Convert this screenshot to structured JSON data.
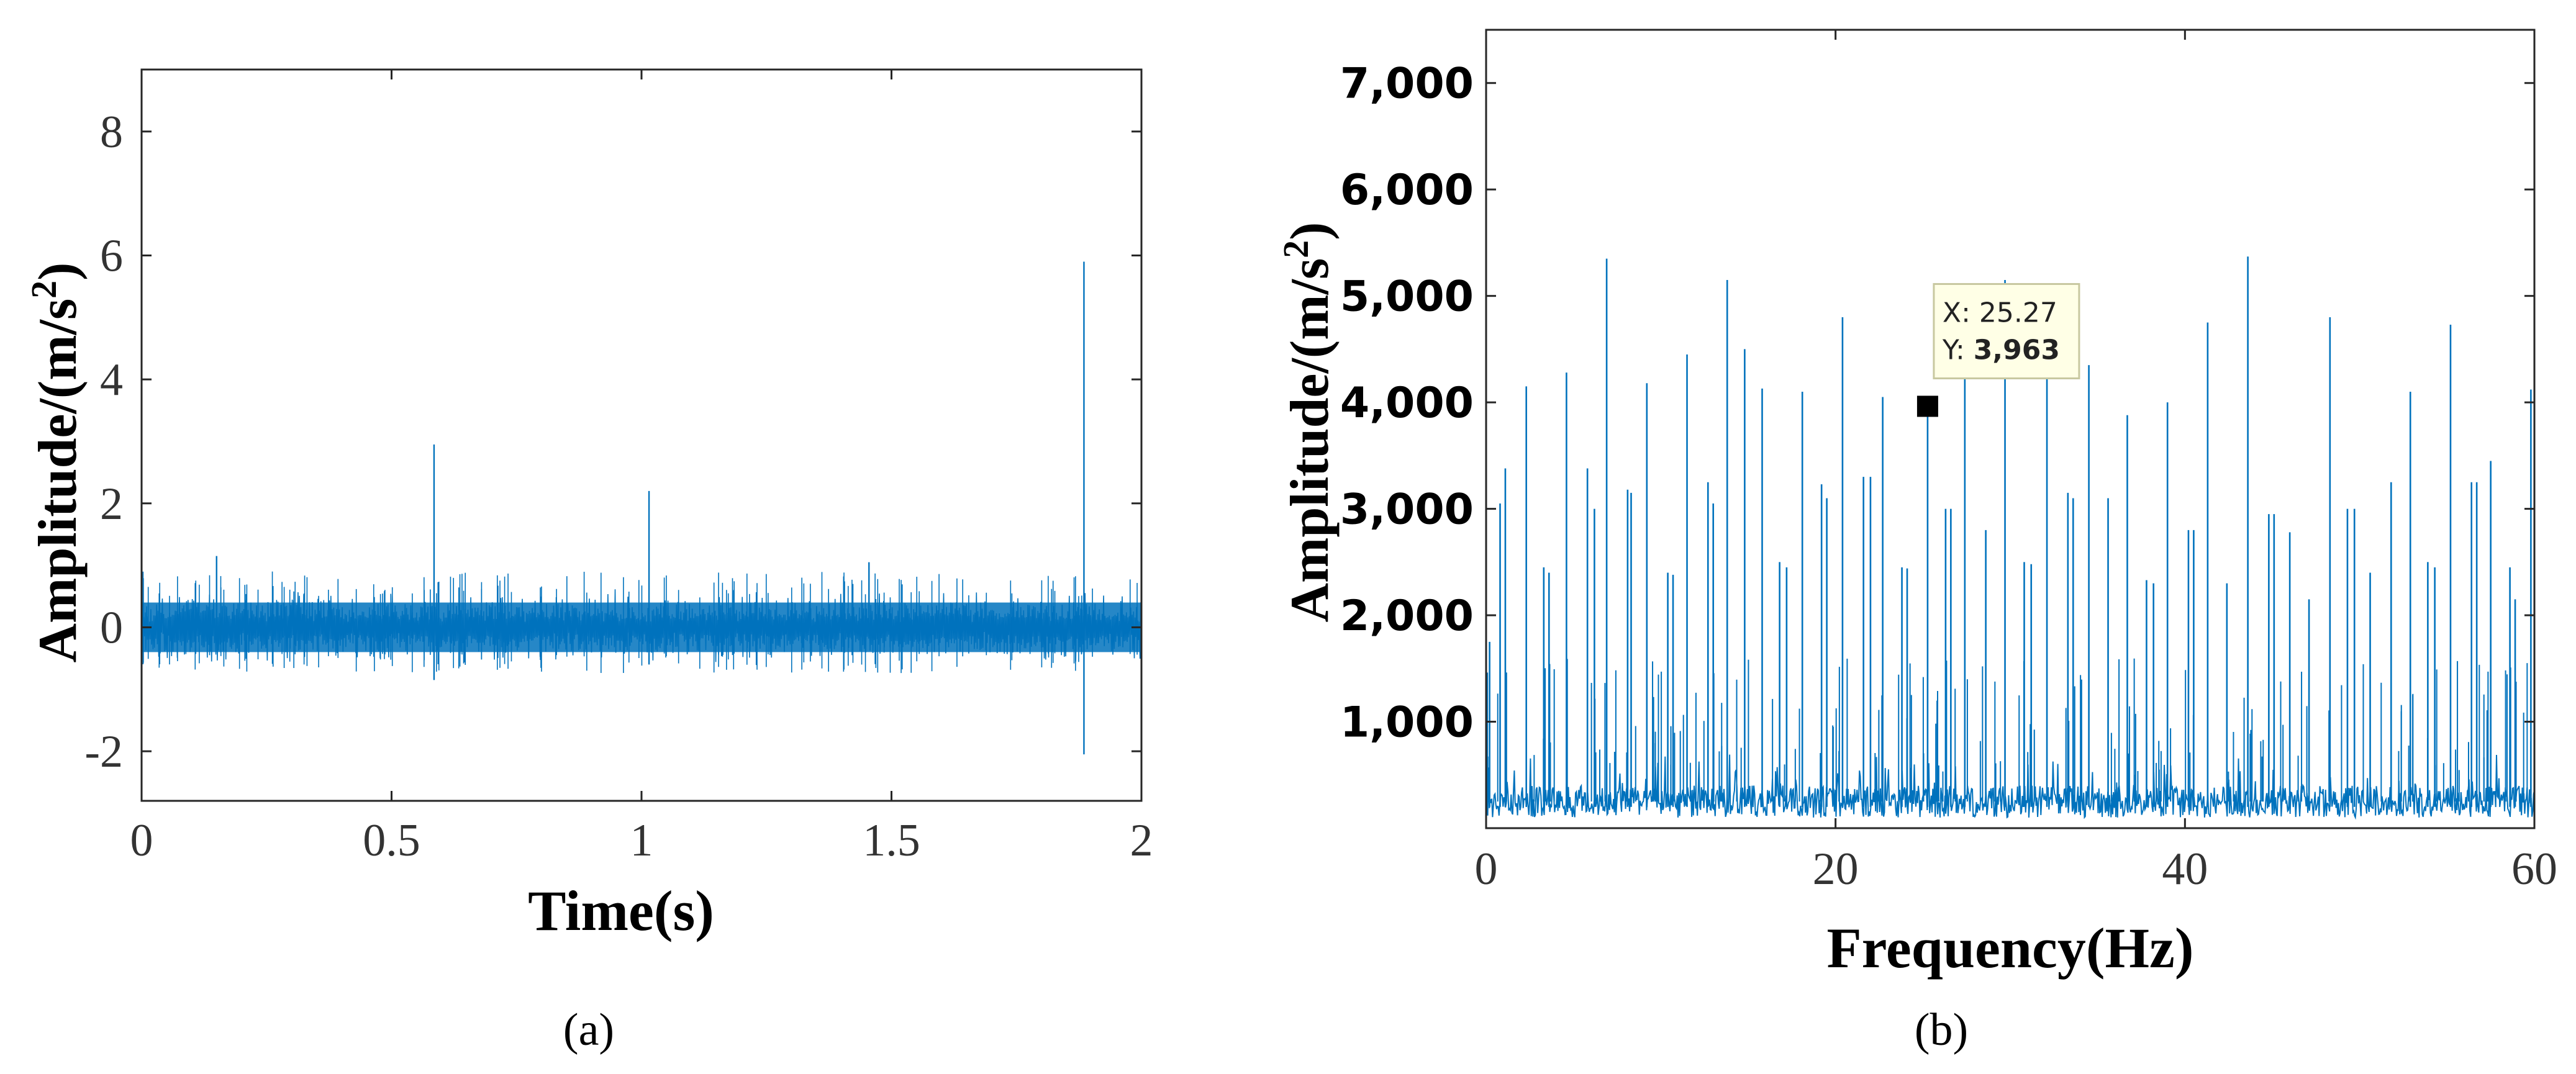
{
  "colors": {
    "signal": "#0072BD",
    "axis": "#262626",
    "datatip_bg": "#FFFFE6",
    "datatip_border": "#C8C8A0"
  },
  "chart_data": [
    {
      "type": "line",
      "panel_label": "(a)",
      "xlabel": "Time(s)",
      "ylabel": "Amplitude/(m/s",
      "ylabel_sup": "2",
      "ylabel_close": ")",
      "xlim": [
        0,
        2
      ],
      "ylim": [
        -2.8,
        9
      ],
      "xticks": [
        0,
        0.5,
        1,
        1.5,
        2
      ],
      "xtick_labels": [
        "0",
        "0.5",
        "1",
        "1.5",
        "2"
      ],
      "yticks": [
        -2,
        0,
        2,
        4,
        6,
        8
      ],
      "ytick_labels": [
        "-2",
        "0",
        "2",
        "4",
        "6",
        "8"
      ],
      "grid": false,
      "noise_band": [
        -0.4,
        0.4
      ],
      "spikes": [
        {
          "x": 0.15,
          "y": 1.15
        },
        {
          "x": 0.585,
          "y": 2.95,
          "ymin": -0.85
        },
        {
          "x": 1.015,
          "y": 2.2,
          "ymin": -0.6
        },
        {
          "x": 1.455,
          "y": 1.05
        },
        {
          "x": 1.885,
          "y": 5.9,
          "ymin": -2.05
        }
      ]
    },
    {
      "type": "line",
      "panel_label": "(b)",
      "xlabel": "Frequency(Hz)",
      "ylabel": "Amplitude/(m/s",
      "ylabel_sup": "2",
      "ylabel_close": ")",
      "xlim": [
        0,
        60
      ],
      "ylim": [
        0,
        7500
      ],
      "xticks": [
        0,
        20,
        40,
        60
      ],
      "xtick_labels": [
        "0",
        "20",
        "40",
        "60"
      ],
      "yticks": [
        1000,
        2000,
        3000,
        4000,
        5000,
        6000,
        7000
      ],
      "ytick_labels": [
        "1,000",
        "2,000",
        "3,000",
        "4,000",
        "5,000",
        "6,000",
        "7,000"
      ],
      "grid": false,
      "baseline": [
        100,
        400
      ],
      "peaks": [
        {
          "x": 0.2,
          "y": 1750
        },
        {
          "x": 0.8,
          "y": 3050
        },
        {
          "x": 1.1,
          "y": 3380
        },
        {
          "x": 2.3,
          "y": 4150
        },
        {
          "x": 3.3,
          "y": 2450
        },
        {
          "x": 3.6,
          "y": 2400
        },
        {
          "x": 4.6,
          "y": 4280
        },
        {
          "x": 5.8,
          "y": 3380
        },
        {
          "x": 6.2,
          "y": 3000
        },
        {
          "x": 6.9,
          "y": 5350
        },
        {
          "x": 8.1,
          "y": 3180
        },
        {
          "x": 8.3,
          "y": 3150
        },
        {
          "x": 9.2,
          "y": 4180
        },
        {
          "x": 10.4,
          "y": 2400
        },
        {
          "x": 10.7,
          "y": 2380
        },
        {
          "x": 11.5,
          "y": 4450
        },
        {
          "x": 12.7,
          "y": 3250
        },
        {
          "x": 13.0,
          "y": 3050
        },
        {
          "x": 13.8,
          "y": 5150
        },
        {
          "x": 14.8,
          "y": 4500
        },
        {
          "x": 15.8,
          "y": 4130
        },
        {
          "x": 16.8,
          "y": 2500
        },
        {
          "x": 17.2,
          "y": 2450
        },
        {
          "x": 18.1,
          "y": 4100
        },
        {
          "x": 19.2,
          "y": 3230
        },
        {
          "x": 19.5,
          "y": 3100
        },
        {
          "x": 20.4,
          "y": 4800
        },
        {
          "x": 21.6,
          "y": 3300
        },
        {
          "x": 22.0,
          "y": 3300
        },
        {
          "x": 22.7,
          "y": 4050
        },
        {
          "x": 23.8,
          "y": 2450
        },
        {
          "x": 24.1,
          "y": 2440
        },
        {
          "x": 25.27,
          "y": 3963
        },
        {
          "x": 26.3,
          "y": 3000
        },
        {
          "x": 26.6,
          "y": 3000
        },
        {
          "x": 27.4,
          "y": 4450
        },
        {
          "x": 28.6,
          "y": 2800
        },
        {
          "x": 29.7,
          "y": 5150
        },
        {
          "x": 30.8,
          "y": 2500
        },
        {
          "x": 31.2,
          "y": 2480
        },
        {
          "x": 32.1,
          "y": 4500
        },
        {
          "x": 33.3,
          "y": 3150
        },
        {
          "x": 33.6,
          "y": 3100
        },
        {
          "x": 34.5,
          "y": 4350
        },
        {
          "x": 35.6,
          "y": 3100
        },
        {
          "x": 36.7,
          "y": 3880
        },
        {
          "x": 37.8,
          "y": 2330
        },
        {
          "x": 38.2,
          "y": 2300
        },
        {
          "x": 39.0,
          "y": 4000
        },
        {
          "x": 40.2,
          "y": 2800
        },
        {
          "x": 40.5,
          "y": 2800
        },
        {
          "x": 41.3,
          "y": 4750
        },
        {
          "x": 42.4,
          "y": 2300
        },
        {
          "x": 43.6,
          "y": 5370
        },
        {
          "x": 44.8,
          "y": 2950
        },
        {
          "x": 45.1,
          "y": 2950
        },
        {
          "x": 46.0,
          "y": 2780
        },
        {
          "x": 47.1,
          "y": 2150
        },
        {
          "x": 48.3,
          "y": 4800
        },
        {
          "x": 49.3,
          "y": 3000
        },
        {
          "x": 49.7,
          "y": 3000
        },
        {
          "x": 50.6,
          "y": 2400
        },
        {
          "x": 51.8,
          "y": 3250
        },
        {
          "x": 52.9,
          "y": 4100
        },
        {
          "x": 53.9,
          "y": 2500
        },
        {
          "x": 54.3,
          "y": 2450
        },
        {
          "x": 55.2,
          "y": 4730
        },
        {
          "x": 56.4,
          "y": 3250
        },
        {
          "x": 56.7,
          "y": 3250
        },
        {
          "x": 57.5,
          "y": 3450
        },
        {
          "x": 58.6,
          "y": 2450
        },
        {
          "x": 58.9,
          "y": 2150
        },
        {
          "x": 59.8,
          "y": 4120
        }
      ],
      "datatip": {
        "x_label": "X: ",
        "x_value": "25.27",
        "y_label": "Y: ",
        "y_value": "3,963",
        "x": 25.27,
        "y": 3963
      }
    }
  ]
}
